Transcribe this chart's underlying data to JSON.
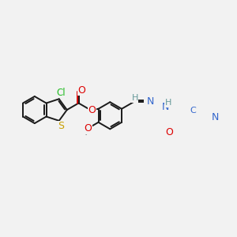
{
  "bg_color": "#f2f2f2",
  "bond_color": "#1a1a1a",
  "lw": 1.4,
  "figsize": [
    3.0,
    3.0
  ],
  "dpi": 100,
  "colors": {
    "C": "#1a1a1a",
    "S": "#c8a000",
    "Cl": "#22bb22",
    "O": "#dd0000",
    "N": "#3366cc",
    "H": "#669999"
  }
}
